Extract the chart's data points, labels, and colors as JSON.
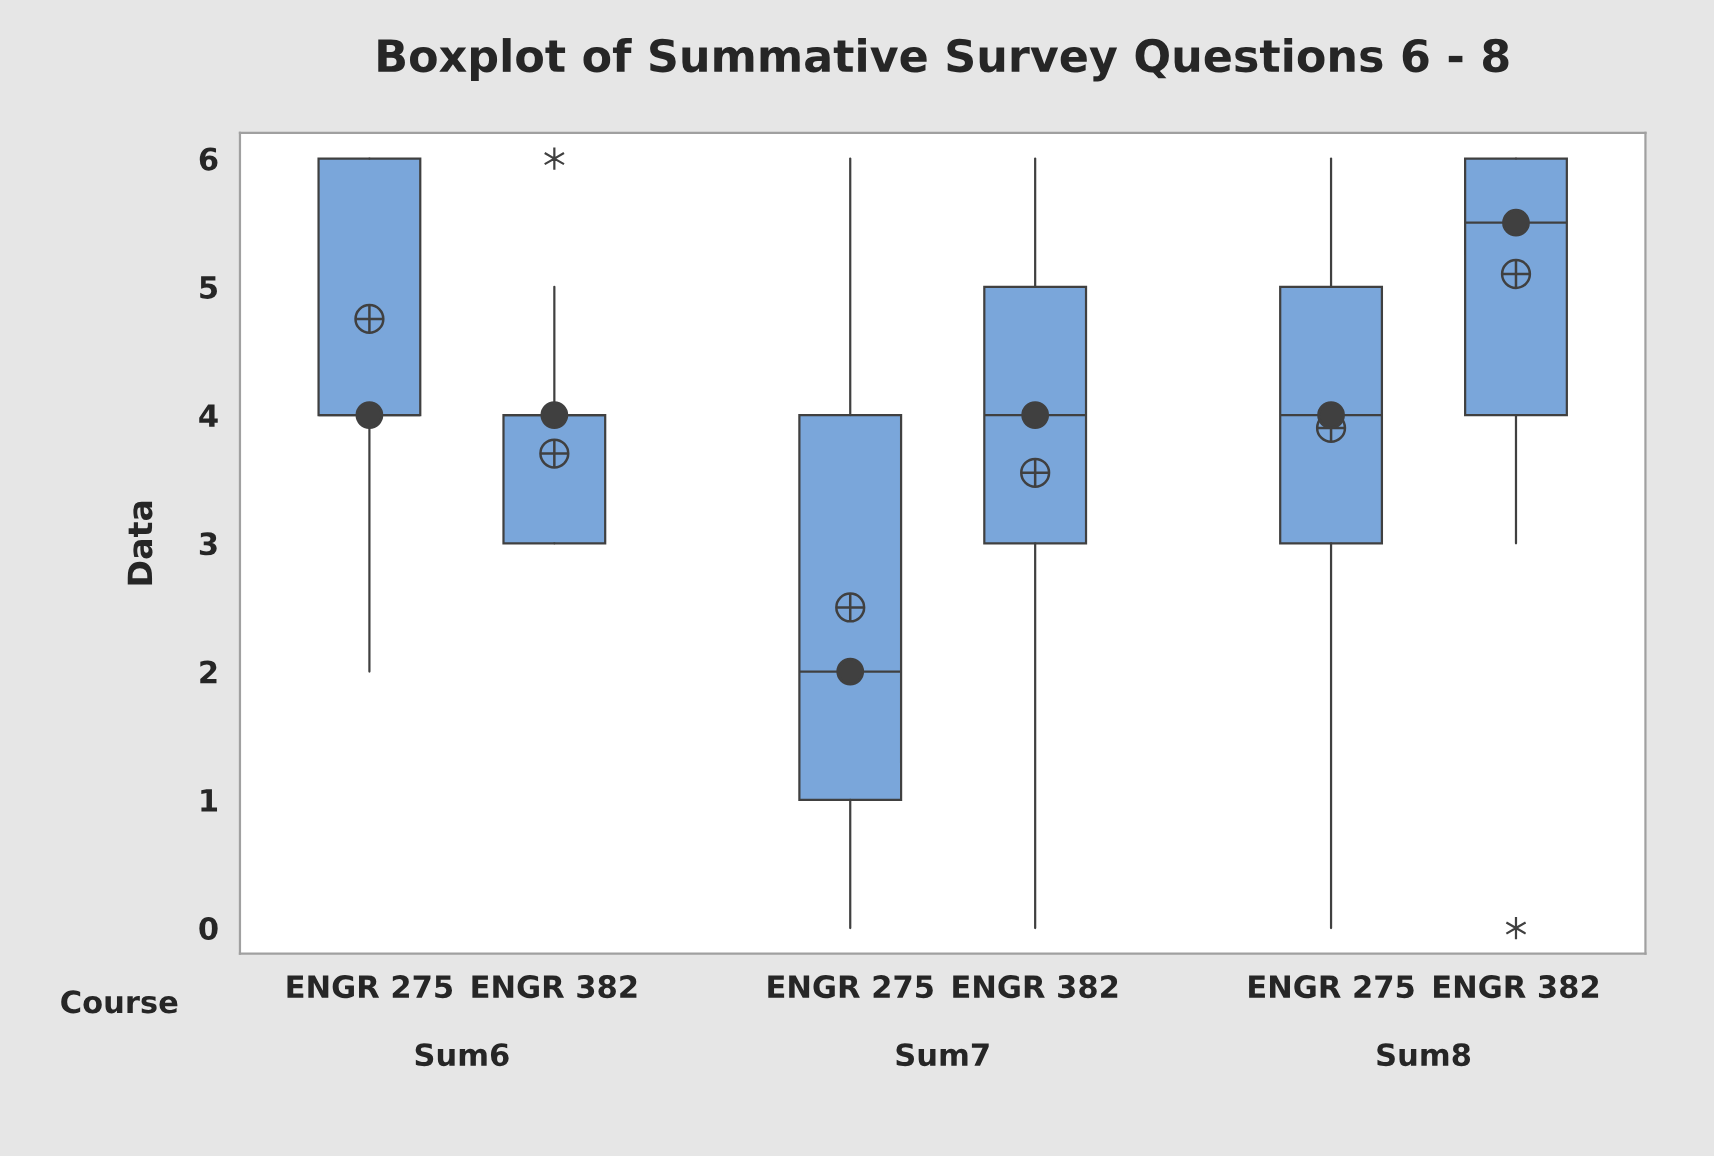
{
  "chart_data": {
    "type": "box",
    "title": "Boxplot of Summative Survey Questions 6 - 8",
    "ylabel": "Data",
    "categories": [
      "ENGR 275",
      "ENGR 382",
      "ENGR 275",
      "ENGR 382",
      "ENGR 275",
      "ENGR 382"
    ],
    "annotations": [
      "Course",
      "Sum6",
      "Sum7",
      "Sum8"
    ],
    "boxes": [
      {
        "low": 2,
        "q1": 4,
        "median": 4,
        "q3": 6,
        "high": 6,
        "mean": 4.75
      },
      {
        "low": 3,
        "q1": 3,
        "median": 4,
        "q3": 4,
        "high": 5,
        "mean": 3.7,
        "outliers": [
          6
        ]
      },
      {
        "low": 0,
        "q1": 1,
        "median": 2,
        "q3": 4,
        "high": 6,
        "mean": 2.5
      },
      {
        "low": 0,
        "q1": 3,
        "median": 4,
        "q3": 5,
        "high": 6,
        "mean": 3.55
      },
      {
        "low": 0,
        "q1": 3,
        "median": 4,
        "q3": 5,
        "high": 6,
        "mean": 3.9
      },
      {
        "low": 3,
        "q1": 4,
        "median": 5.5,
        "q3": 6,
        "high": 6,
        "mean": 5.1,
        "outliers": [
          0
        ]
      }
    ],
    "series": [
      {
        "type": "scatter",
        "color": "#404040",
        "marker": "circle",
        "values": [
          4,
          4,
          2,
          4,
          4,
          5.5
        ]
      }
    ],
    "color": "#7aa6da",
    "ylim": [
      -0.2,
      6.2
    ],
    "yticks": [
      0,
      1,
      2,
      3,
      4,
      5,
      6
    ],
    "grid": false,
    "legend": false
  }
}
